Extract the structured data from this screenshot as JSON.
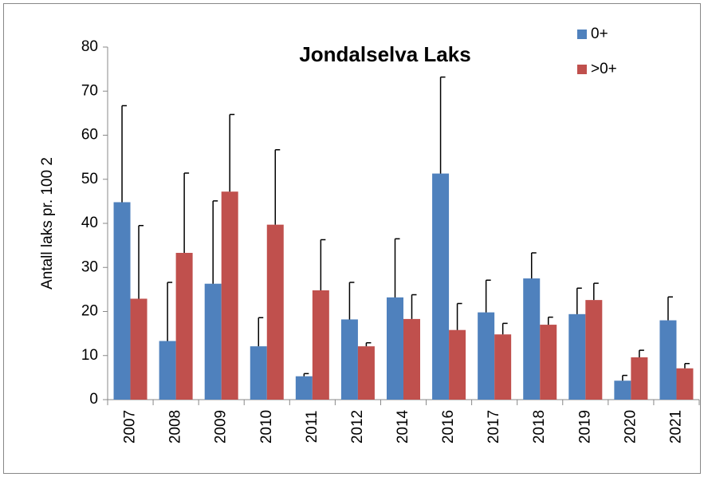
{
  "chart_data": {
    "type": "bar",
    "title": "Jondalselva Laks",
    "y_label": "Antall laks pr. 100  2",
    "categories": [
      "2007",
      "2008",
      "2009",
      "2010",
      "2011",
      "2012",
      "2014",
      "2016",
      "2017",
      "2018",
      "2019",
      "2020",
      "2021"
    ],
    "series": [
      {
        "name": "0+",
        "color": "#4f81bd",
        "values": [
          44.8,
          13.3,
          26.3,
          12.1,
          5.3,
          18.2,
          23.2,
          51.3,
          19.8,
          27.5,
          19.4,
          4.3,
          18.0
        ],
        "errors": [
          21.9,
          13.3,
          18.8,
          6.5,
          0.6,
          8.4,
          13.3,
          21.9,
          7.3,
          5.8,
          5.9,
          1.2,
          5.3
        ]
      },
      {
        "name": ">0+",
        "color": "#c0504d",
        "values": [
          22.9,
          33.3,
          47.2,
          39.7,
          24.8,
          12.1,
          18.3,
          15.8,
          14.8,
          17.0,
          22.6,
          9.6,
          7.1
        ],
        "errors": [
          16.6,
          18.1,
          17.5,
          17.0,
          11.5,
          0.8,
          5.5,
          6.0,
          2.5,
          1.7,
          3.8,
          1.6,
          1.1
        ]
      }
    ],
    "ylim": [
      0,
      80
    ],
    "yticks": [
      0,
      10,
      20,
      30,
      40,
      50,
      60,
      70,
      80
    ],
    "grid": false
  }
}
